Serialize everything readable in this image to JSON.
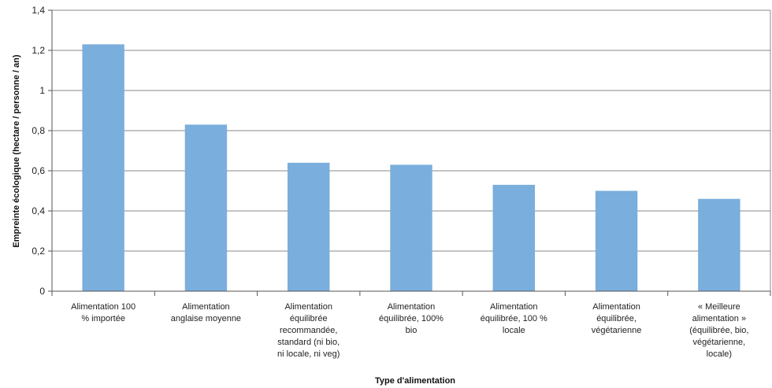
{
  "chart_data": {
    "type": "bar",
    "xlabel": "Type d'alimentation",
    "ylabel": "Empreinte écologique (hectare / personne / an)",
    "ylim": [
      0,
      1.4
    ],
    "y_ticks": [
      "0",
      "0,2",
      "0,4",
      "0,6",
      "0,8",
      "1",
      "1,2",
      "1,4"
    ],
    "grid": true,
    "bar_color": "#7aaedc",
    "categories": [
      [
        "Alimentation 100",
        "% importée"
      ],
      [
        "Alimentation",
        "anglaise moyenne"
      ],
      [
        "Alimentation",
        "équilibrée",
        "recommandée,",
        "standard (ni bio,",
        "ni locale, ni veg)"
      ],
      [
        "Alimentation",
        "équilibrée, 100%",
        "bio"
      ],
      [
        "Alimentation",
        "équilibrée, 100 %",
        "locale"
      ],
      [
        "Alimentation",
        "équilibrée,",
        "végétarienne"
      ],
      [
        "« Meilleure",
        "alimentation »",
        "(équilibrée, bio,",
        "végétarienne,",
        "locale)"
      ]
    ],
    "values": [
      1.23,
      0.83,
      0.64,
      0.63,
      0.53,
      0.5,
      0.46
    ]
  }
}
